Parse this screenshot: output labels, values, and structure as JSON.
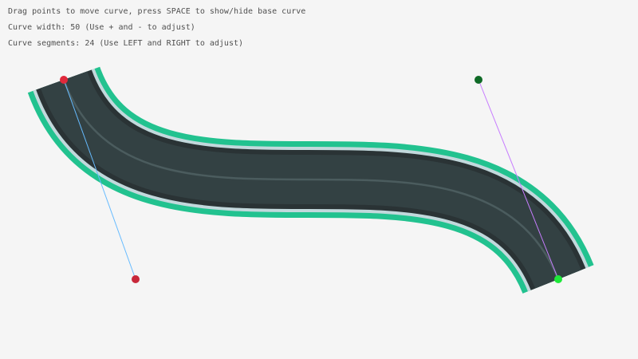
{
  "instructions": {
    "line1": "Drag points to move curve, press SPACE to show/hide base curve",
    "line2": "Curve width: 50 (Use + and - to adjust)",
    "line3": "Curve segments: 24 (Use LEFT and RIGHT to adjust)"
  },
  "curve": {
    "width": 50,
    "segments": 24,
    "start_point": {
      "x": 80,
      "y": 100
    },
    "start_control": {
      "x": 170,
      "y": 350
    },
    "end_control": {
      "x": 600,
      "y": 100
    },
    "end_point": {
      "x": 700,
      "y": 350
    }
  },
  "colors": {
    "background": "#f5f5f5",
    "road_border": "#22c28f",
    "road_edge": "#c2d8dc",
    "road_shoulder": "#2a3335",
    "road_surface": "#334143",
    "lane_line": "#4b5c5e",
    "start_point": "#e0293b",
    "start_control": "#c8283a",
    "end_point": "#1ee83a",
    "end_control": "#0f6a26",
    "start_handle_line": "#66bbff",
    "end_handle_line": "#c77dff"
  }
}
